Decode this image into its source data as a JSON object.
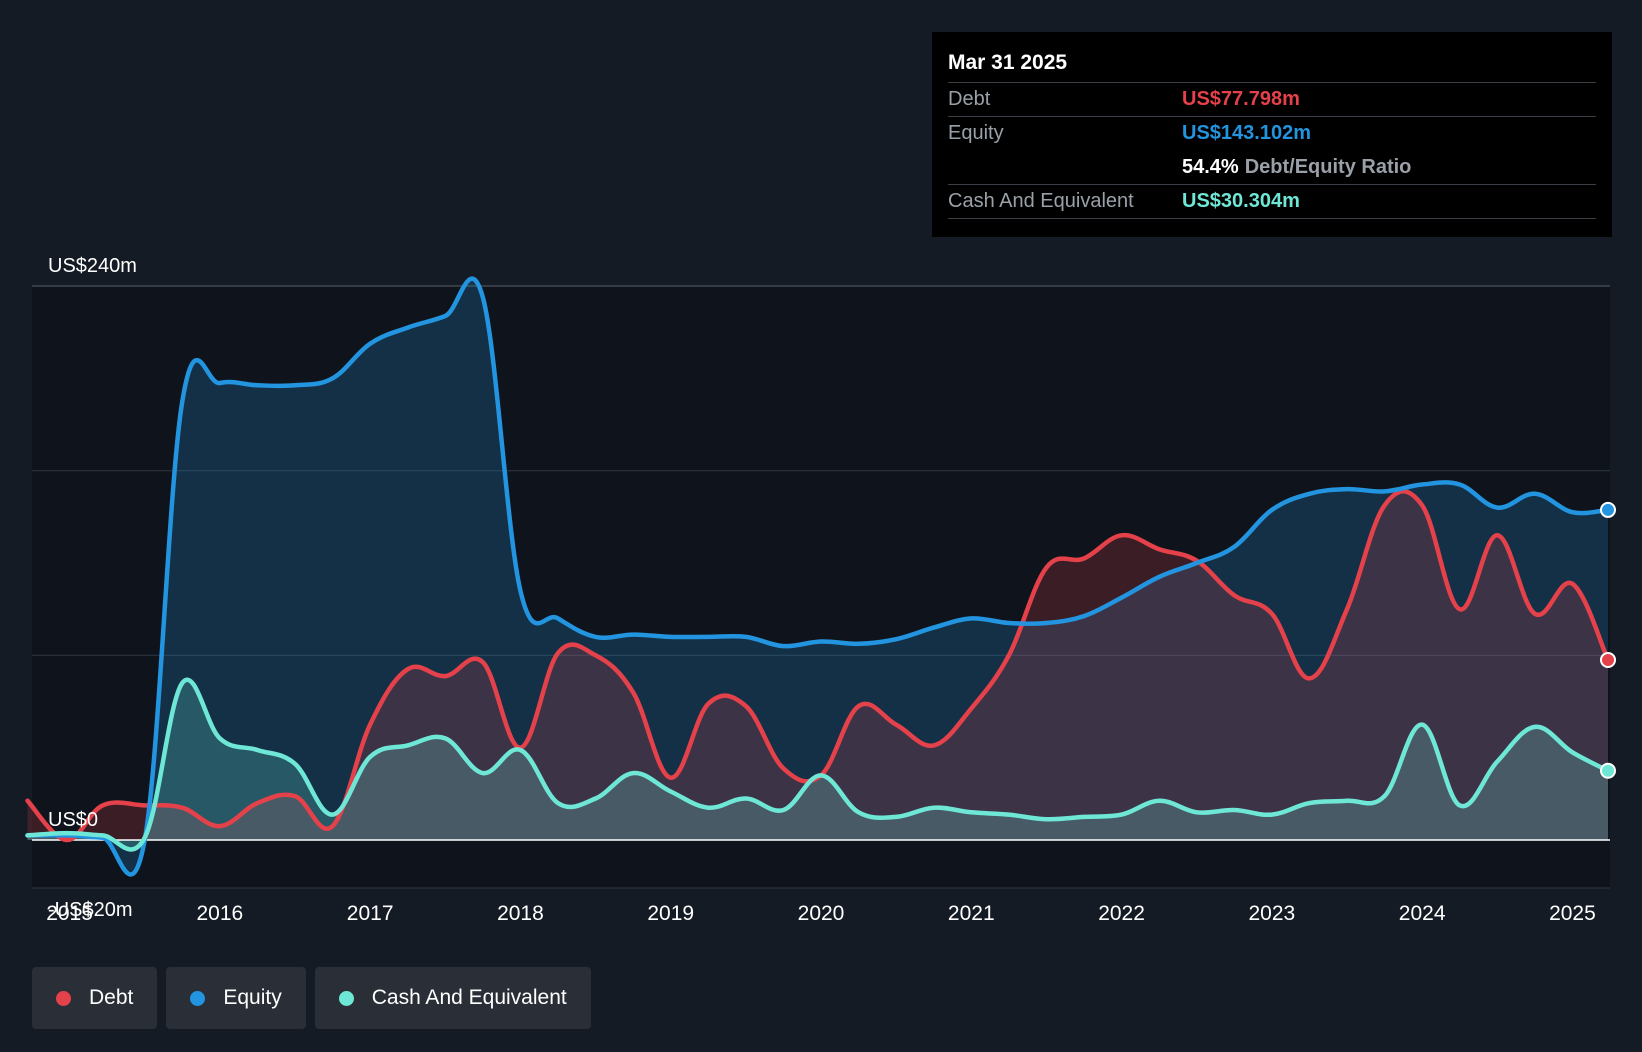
{
  "tooltip": {
    "date": "Mar 31 2025",
    "debt_label": "Debt",
    "debt_value": "US$77.798m",
    "equity_label": "Equity",
    "equity_value": "US$143.102m",
    "ratio_value": "54.4%",
    "ratio_label": "Debt/Equity Ratio",
    "cash_label": "Cash And Equivalent",
    "cash_value": "US$30.304m"
  },
  "legend": {
    "debt": "Debt",
    "equity": "Equity",
    "cash": "Cash And Equivalent"
  },
  "colors": {
    "debt": "#e5414a",
    "equity": "#2394df",
    "cash": "#6fe7d6",
    "background": "#151b24"
  },
  "chart_data": {
    "type": "area",
    "y_tick_labels": [
      "US$240m",
      "US$0",
      "-US$20m"
    ],
    "yticks": [
      240,
      0,
      -20
    ],
    "ylim": [
      -20,
      240
    ],
    "xlim": [
      2014.75,
      2025.25
    ],
    "x_tick_labels": [
      "2015",
      "2016",
      "2017",
      "2018",
      "2019",
      "2020",
      "2021",
      "2022",
      "2023",
      "2024",
      "2025"
    ],
    "xticks": [
      2015,
      2016,
      2017,
      2018,
      2019,
      2020,
      2021,
      2022,
      2023,
      2024,
      2025
    ],
    "series": [
      {
        "name": "Debt",
        "color": "#e5414a",
        "x": [
          2014.72,
          2014.98,
          2015.22,
          2015.5,
          2015.75,
          2016.0,
          2016.25,
          2016.5,
          2016.75,
          2017.0,
          2017.25,
          2017.5,
          2017.75,
          2018.0,
          2018.25,
          2018.5,
          2018.75,
          2019.0,
          2019.25,
          2019.5,
          2019.75,
          2020.0,
          2020.25,
          2020.5,
          2020.75,
          2021.0,
          2021.25,
          2021.5,
          2021.75,
          2022.0,
          2022.25,
          2022.5,
          2022.75,
          2023.0,
          2023.25,
          2023.5,
          2023.75,
          2024.0,
          2024.25,
          2024.5,
          2024.75,
          2025.0,
          2025.25
        ],
        "y": [
          17,
          0,
          15,
          15,
          14,
          6,
          16,
          19,
          6,
          50,
          74,
          71,
          77,
          40,
          81,
          80,
          64,
          27,
          59,
          58,
          31,
          28,
          58,
          50,
          41,
          57,
          80,
          118,
          122,
          132,
          126,
          121,
          106,
          98,
          70,
          100,
          145,
          145,
          100,
          132,
          98,
          111,
          78
        ]
      },
      {
        "name": "Equity",
        "color": "#2394df",
        "x": [
          2014.72,
          2014.98,
          2015.22,
          2015.5,
          2015.75,
          2016.0,
          2016.25,
          2016.5,
          2016.75,
          2017.0,
          2017.25,
          2017.5,
          2017.75,
          2018.0,
          2018.25,
          2018.5,
          2018.75,
          2019.0,
          2019.25,
          2019.5,
          2019.75,
          2020.0,
          2020.25,
          2020.5,
          2020.75,
          2021.0,
          2021.25,
          2021.5,
          2021.75,
          2022.0,
          2022.25,
          2022.5,
          2022.75,
          2023.0,
          2023.25,
          2023.5,
          2023.75,
          2024.0,
          2024.25,
          2024.5,
          2024.75,
          2025.0,
          2025.25
        ],
        "y": [
          2,
          2,
          1,
          0,
          190,
          198,
          197,
          197,
          200,
          215,
          222,
          227,
          235,
          108,
          96,
          88,
          89,
          88,
          88,
          88,
          84,
          86,
          85,
          87,
          92,
          96,
          94,
          94,
          97,
          105,
          114,
          120,
          127,
          143,
          150,
          152,
          151,
          154,
          154,
          144,
          150,
          142,
          143
        ]
      },
      {
        "name": "Cash And Equivalent",
        "color": "#6fe7d6",
        "x": [
          2014.72,
          2014.98,
          2015.22,
          2015.5,
          2015.75,
          2016.0,
          2016.25,
          2016.5,
          2016.75,
          2017.0,
          2017.25,
          2017.5,
          2017.75,
          2018.0,
          2018.25,
          2018.5,
          2018.75,
          2019.0,
          2019.25,
          2019.5,
          2019.75,
          2020.0,
          2020.25,
          2020.5,
          2020.75,
          2021.0,
          2021.25,
          2021.5,
          2021.75,
          2022.0,
          2022.25,
          2022.5,
          2022.75,
          2023.0,
          2023.25,
          2023.5,
          2023.75,
          2024.0,
          2024.25,
          2024.5,
          2024.75,
          2025.0,
          2025.25
        ],
        "y": [
          2,
          3,
          2,
          1,
          68,
          44,
          39,
          33,
          11,
          36,
          41,
          44,
          29,
          39,
          16,
          18,
          29,
          21,
          14,
          18,
          13,
          28,
          12,
          10,
          14,
          12,
          11,
          9,
          10,
          11,
          17,
          12,
          13,
          11,
          16,
          17,
          19,
          50,
          15,
          34,
          49,
          38,
          30
        ]
      }
    ],
    "legend_position": "bottom-left",
    "grid": true
  }
}
